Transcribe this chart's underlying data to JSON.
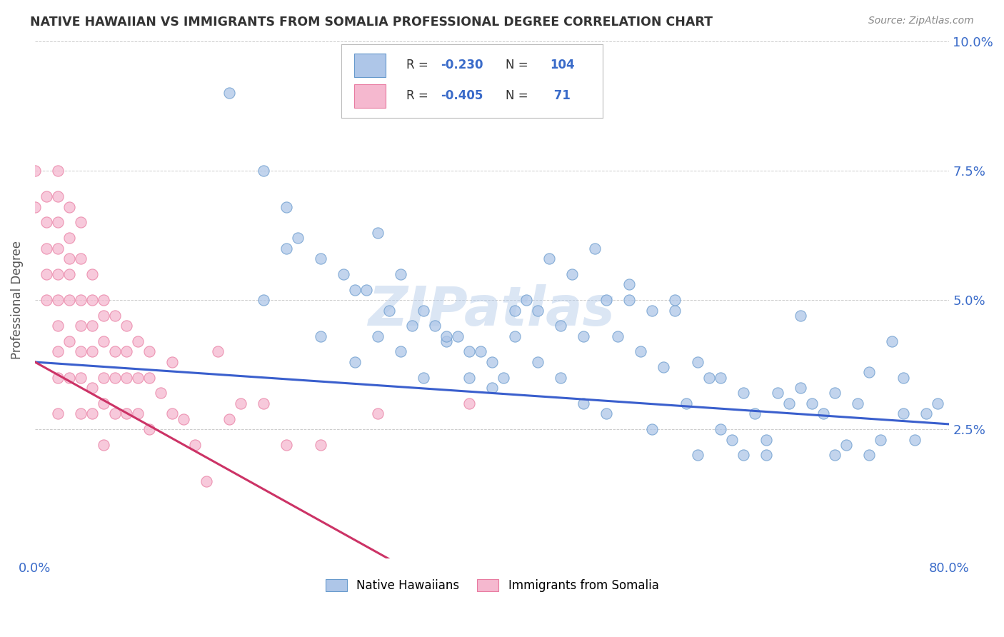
{
  "title": "NATIVE HAWAIIAN VS IMMIGRANTS FROM SOMALIA PROFESSIONAL DEGREE CORRELATION CHART",
  "source": "Source: ZipAtlas.com",
  "ylabel": "Professional Degree",
  "xlim": [
    0.0,
    0.8
  ],
  "ylim": [
    0.0,
    0.1
  ],
  "nhawaiian_color": "#aec6e8",
  "somalia_color": "#f5b8cf",
  "nhawaiian_edge_color": "#6699cc",
  "somalia_edge_color": "#e87aa0",
  "nhawaiian_line_color": "#3a5fcd",
  "somalia_line_color": "#cc3366",
  "background_color": "#ffffff",
  "watermark": "ZIPatlas",
  "nhawaiian_scatter_x": [
    0.17,
    0.2,
    0.22,
    0.23,
    0.25,
    0.27,
    0.28,
    0.29,
    0.3,
    0.31,
    0.32,
    0.33,
    0.34,
    0.35,
    0.36,
    0.37,
    0.38,
    0.39,
    0.4,
    0.41,
    0.42,
    0.43,
    0.44,
    0.45,
    0.46,
    0.47,
    0.48,
    0.49,
    0.5,
    0.51,
    0.52,
    0.53,
    0.54,
    0.55,
    0.56,
    0.57,
    0.58,
    0.59,
    0.6,
    0.61,
    0.62,
    0.63,
    0.64,
    0.65,
    0.66,
    0.67,
    0.68,
    0.69,
    0.7,
    0.71,
    0.72,
    0.73,
    0.74,
    0.75,
    0.76,
    0.77,
    0.78,
    0.2,
    0.22,
    0.25,
    0.28,
    0.3,
    0.32,
    0.34,
    0.36,
    0.38,
    0.4,
    0.42,
    0.44,
    0.46,
    0.48,
    0.5,
    0.52,
    0.54,
    0.56,
    0.58,
    0.6,
    0.62,
    0.64,
    0.67,
    0.7,
    0.73,
    0.76,
    0.79
  ],
  "nhawaiian_scatter_y": [
    0.09,
    0.075,
    0.068,
    0.062,
    0.058,
    0.055,
    0.052,
    0.052,
    0.063,
    0.048,
    0.055,
    0.045,
    0.048,
    0.045,
    0.042,
    0.043,
    0.04,
    0.04,
    0.038,
    0.035,
    0.048,
    0.05,
    0.048,
    0.058,
    0.045,
    0.055,
    0.043,
    0.06,
    0.05,
    0.043,
    0.05,
    0.04,
    0.048,
    0.037,
    0.048,
    0.03,
    0.038,
    0.035,
    0.025,
    0.023,
    0.032,
    0.028,
    0.023,
    0.032,
    0.03,
    0.033,
    0.03,
    0.028,
    0.032,
    0.022,
    0.03,
    0.02,
    0.023,
    0.042,
    0.035,
    0.023,
    0.028,
    0.05,
    0.06,
    0.043,
    0.038,
    0.043,
    0.04,
    0.035,
    0.043,
    0.035,
    0.033,
    0.043,
    0.038,
    0.035,
    0.03,
    0.028,
    0.053,
    0.025,
    0.05,
    0.02,
    0.035,
    0.02,
    0.02,
    0.047,
    0.02,
    0.036,
    0.028,
    0.03
  ],
  "somalia_scatter_x": [
    0.0,
    0.0,
    0.01,
    0.01,
    0.01,
    0.01,
    0.01,
    0.02,
    0.02,
    0.02,
    0.02,
    0.02,
    0.02,
    0.02,
    0.02,
    0.02,
    0.02,
    0.03,
    0.03,
    0.03,
    0.03,
    0.03,
    0.03,
    0.03,
    0.04,
    0.04,
    0.04,
    0.04,
    0.04,
    0.04,
    0.04,
    0.05,
    0.05,
    0.05,
    0.05,
    0.05,
    0.05,
    0.06,
    0.06,
    0.06,
    0.06,
    0.06,
    0.06,
    0.07,
    0.07,
    0.07,
    0.07,
    0.08,
    0.08,
    0.08,
    0.08,
    0.09,
    0.09,
    0.09,
    0.1,
    0.1,
    0.1,
    0.11,
    0.12,
    0.12,
    0.13,
    0.14,
    0.15,
    0.16,
    0.17,
    0.18,
    0.2,
    0.22,
    0.25,
    0.3,
    0.38
  ],
  "somalia_scatter_y": [
    0.075,
    0.068,
    0.07,
    0.065,
    0.06,
    0.055,
    0.05,
    0.075,
    0.07,
    0.065,
    0.06,
    0.055,
    0.05,
    0.045,
    0.04,
    0.035,
    0.028,
    0.068,
    0.062,
    0.058,
    0.055,
    0.05,
    0.042,
    0.035,
    0.065,
    0.058,
    0.05,
    0.045,
    0.04,
    0.035,
    0.028,
    0.055,
    0.05,
    0.045,
    0.04,
    0.033,
    0.028,
    0.05,
    0.047,
    0.042,
    0.035,
    0.03,
    0.022,
    0.047,
    0.04,
    0.035,
    0.028,
    0.045,
    0.04,
    0.035,
    0.028,
    0.042,
    0.035,
    0.028,
    0.04,
    0.035,
    0.025,
    0.032,
    0.038,
    0.028,
    0.027,
    0.022,
    0.015,
    0.04,
    0.027,
    0.03,
    0.03,
    0.022,
    0.022,
    0.028,
    0.03
  ],
  "nhawaiian_trend": [
    0.038,
    0.026
  ],
  "nhawaiian_trend_x": [
    0.0,
    0.8
  ],
  "somalia_trend": [
    0.038,
    -0.005
  ],
  "somalia_trend_x": [
    0.0,
    0.35
  ]
}
